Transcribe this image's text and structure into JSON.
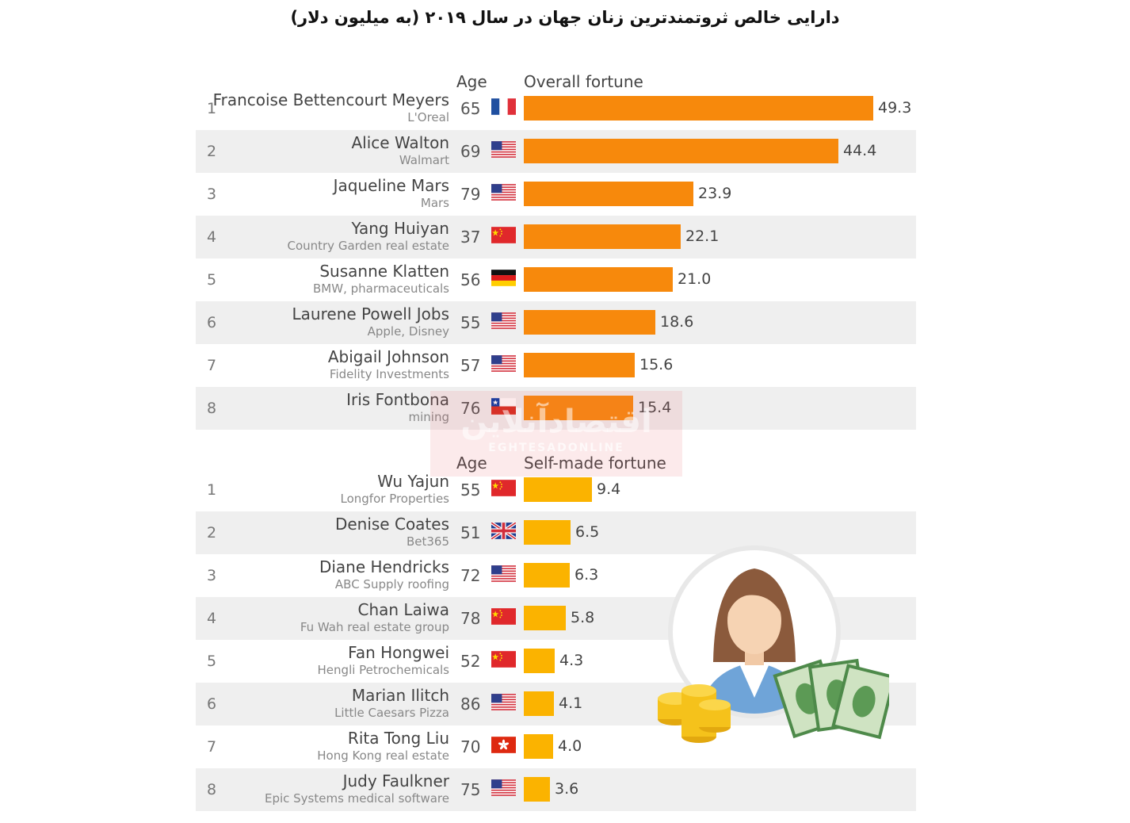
{
  "title": "دارایی خالص ثروتمندترین زنان جهان در سال ۲۰۱۹ (به میلیون دلار)",
  "colors": {
    "overall": "#f7890c",
    "self_made": "#fbb300",
    "row_shade": "#efefef"
  },
  "watermark": {
    "text": "اقتصادآنلاین",
    "sub": "EGHTESADONLINE"
  },
  "chart_data": [
    {
      "type": "bar",
      "orientation": "horizontal",
      "headers": {
        "age": "Age",
        "value": "Overall fortune"
      },
      "rows": [
        {
          "rank": "1",
          "name": "Francoise Bettencourt Meyers",
          "company": "L'Oreal",
          "age": "65",
          "flag": "france-flag-icon",
          "value": 49.3,
          "label": "49.3"
        },
        {
          "rank": "2",
          "name": "Alice Walton",
          "company": "Walmart",
          "age": "69",
          "flag": "usa-flag-icon",
          "value": 44.4,
          "label": "44.4"
        },
        {
          "rank": "3",
          "name": "Jaqueline Mars",
          "company": "Mars",
          "age": "79",
          "flag": "usa-flag-icon",
          "value": 23.9,
          "label": "23.9"
        },
        {
          "rank": "4",
          "name": "Yang Huiyan",
          "company": "Country Garden real estate",
          "age": "37",
          "flag": "china-flag-icon",
          "value": 22.1,
          "label": "22.1"
        },
        {
          "rank": "5",
          "name": "Susanne Klatten",
          "company": "BMW, pharmaceuticals",
          "age": "56",
          "flag": "germany-flag-icon",
          "value": 21.0,
          "label": "21.0"
        },
        {
          "rank": "6",
          "name": "Laurene Powell Jobs",
          "company": "Apple, Disney",
          "age": "55",
          "flag": "usa-flag-icon",
          "value": 18.6,
          "label": "18.6"
        },
        {
          "rank": "7",
          "name": "Abigail Johnson",
          "company": "Fidelity Investments",
          "age": "57",
          "flag": "usa-flag-icon",
          "value": 15.6,
          "label": "15.6"
        },
        {
          "rank": "8",
          "name": "Iris Fontbona",
          "company": "mining",
          "age": "76",
          "flag": "chile-flag-icon",
          "value": 15.4,
          "label": "15.4"
        }
      ]
    },
    {
      "type": "bar",
      "orientation": "horizontal",
      "headers": {
        "age": "Age",
        "value": "Self-made fortune"
      },
      "rows": [
        {
          "rank": "1",
          "name": "Wu Yajun",
          "company": "Longfor Properties",
          "age": "55",
          "flag": "china-flag-icon",
          "value": 9.4,
          "label": "9.4"
        },
        {
          "rank": "2",
          "name": "Denise Coates",
          "company": "Bet365",
          "age": "51",
          "flag": "uk-flag-icon",
          "value": 6.5,
          "label": "6.5"
        },
        {
          "rank": "3",
          "name": "Diane Hendricks",
          "company": "ABC Supply roofing",
          "age": "72",
          "flag": "usa-flag-icon",
          "value": 6.3,
          "label": "6.3"
        },
        {
          "rank": "4",
          "name": "Chan Laiwa",
          "company": "Fu Wah real estate group",
          "age": "78",
          "flag": "china-flag-icon",
          "value": 5.8,
          "label": "5.8"
        },
        {
          "rank": "5",
          "name": "Fan Hongwei",
          "company": "Hengli Petrochemicals",
          "age": "52",
          "flag": "china-flag-icon",
          "value": 4.3,
          "label": "4.3"
        },
        {
          "rank": "6",
          "name": "Marian Ilitch",
          "company": "Little Caesars Pizza",
          "age": "86",
          "flag": "usa-flag-icon",
          "value": 4.1,
          "label": "4.1"
        },
        {
          "rank": "7",
          "name": "Rita Tong Liu",
          "company": "Hong Kong real estate",
          "age": "70",
          "flag": "hong-kong-flag-icon",
          "value": 4.0,
          "label": "4.0"
        },
        {
          "rank": "8",
          "name": "Judy Faulkner",
          "company": "Epic Systems medical software",
          "age": "75",
          "flag": "usa-flag-icon",
          "value": 3.6,
          "label": "3.6"
        }
      ]
    }
  ],
  "illustration": {
    "icon": "businesswoman-money-icon"
  }
}
